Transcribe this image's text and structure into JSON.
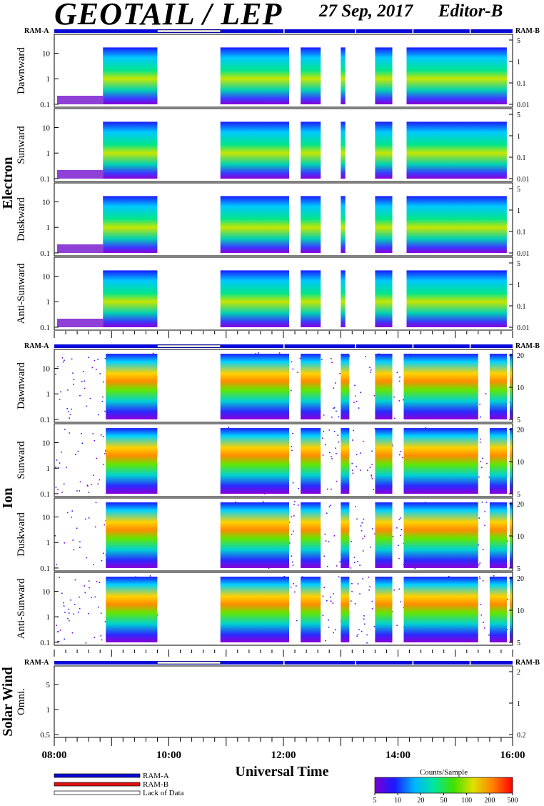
{
  "header": {
    "title": "GEOTAIL / LEP",
    "date": "27 Sep, 2017",
    "editor": "Editor-B"
  },
  "chart_data": {
    "type": "heatmap",
    "xlabel": "Universal Time",
    "x_ticks": [
      "08:00",
      "10:00",
      "12:00",
      "14:00",
      "16:00"
    ],
    "x_range_hours": [
      8,
      16
    ],
    "ram_bar": {
      "left_label": "RAM-A",
      "right_label": "RAM-B",
      "gaps_hours": [
        [
          9.8,
          10.9
        ],
        [
          12.0,
          12.02
        ],
        [
          13.25,
          13.27
        ],
        [
          14.25,
          14.27
        ],
        [
          15.25,
          15.27
        ]
      ]
    },
    "data_gaps_hours": [
      [
        9.8,
        10.9
      ]
    ],
    "groups": [
      {
        "name": "Electron",
        "left_ticks": [
          "10",
          "1",
          "0.1"
        ],
        "right_ticks": [
          "5",
          "1",
          "0.1",
          "0.01"
        ],
        "panels": [
          {
            "name": "Dawnward"
          },
          {
            "name": "Sunward"
          },
          {
            "name": "Duskward"
          },
          {
            "name": "Anti-Sunward"
          }
        ]
      },
      {
        "name": "Ion",
        "left_ticks": [
          "10",
          "1",
          "0.1"
        ],
        "right_ticks": [
          "20",
          "10",
          "5"
        ],
        "panels": [
          {
            "name": "Dawnward"
          },
          {
            "name": "Sunward"
          },
          {
            "name": "Duskward"
          },
          {
            "name": "Anti-Sunward"
          }
        ]
      },
      {
        "name": "Solar Wind",
        "left_ticks": [
          "5",
          "1",
          "0.5"
        ],
        "right_ticks": [
          "2",
          "1",
          "0.2"
        ],
        "panels": [
          {
            "name": "Omni."
          }
        ]
      }
    ],
    "electron_intervals_hours": [
      [
        8.85,
        9.8
      ],
      [
        10.9,
        12.1
      ],
      [
        12.3,
        12.65
      ],
      [
        13.0,
        13.08
      ],
      [
        13.6,
        13.9
      ],
      [
        14.15,
        15.9
      ]
    ],
    "ion_intervals_hours": [
      [
        8.9,
        9.8
      ],
      [
        10.9,
        12.1
      ],
      [
        12.3,
        12.65
      ],
      [
        13.0,
        13.15
      ],
      [
        13.6,
        13.9
      ],
      [
        14.1,
        15.4
      ],
      [
        15.6,
        15.9
      ],
      [
        15.95,
        16.0
      ]
    ],
    "legend": [
      {
        "label": "RAM-A",
        "color": "#0a0ad8"
      },
      {
        "label": "RAM-B",
        "color": "#e01010"
      },
      {
        "label": "Lack of Data",
        "color": "#ffffff"
      }
    ],
    "colorbar": {
      "title": "Counts/Sample",
      "ticks": [
        "5",
        "10",
        "20",
        "50",
        "100",
        "200",
        "500"
      ],
      "colors": [
        "#7b00d4",
        "#1a1aff",
        "#00b4ff",
        "#00e6a0",
        "#40e000",
        "#e0e000",
        "#ff8000",
        "#ff0000"
      ]
    }
  }
}
